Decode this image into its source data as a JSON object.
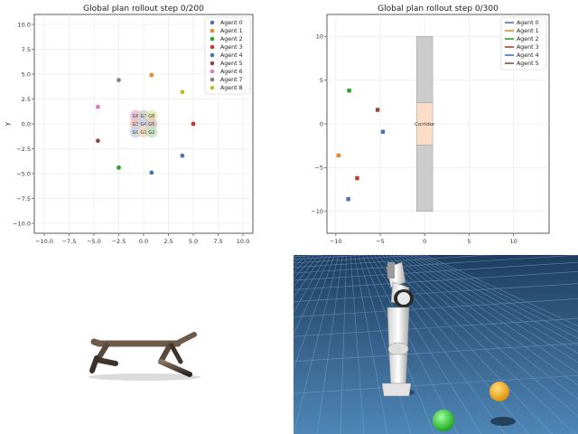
{
  "chart_data": [
    {
      "type": "scatter",
      "title": "Global plan rollout step 0/200",
      "xlabel": "",
      "ylabel": "y",
      "xlim": [
        -11,
        11
      ],
      "ylim": [
        -11,
        11
      ],
      "xticks": [
        -10,
        -7.5,
        -5,
        -2.5,
        0,
        2.5,
        5,
        7.5,
        10
      ],
      "xtick_labels": [
        "−10.0",
        "−7.5",
        "−5.0",
        "−2.5",
        "0.0",
        "2.5",
        "5.0",
        "7.5",
        "10.0"
      ],
      "yticks": [
        -10,
        -7.5,
        -5,
        -2.5,
        0,
        2.5,
        5,
        7.5,
        10
      ],
      "ytick_labels": [
        "−10.0",
        "−7.5",
        "−5.0",
        "−2.5",
        "0.0",
        "2.5",
        "5.0",
        "7.5",
        "10.0"
      ],
      "grid": true,
      "legend_position": "top-right",
      "series": [
        {
          "name": "Agent 0",
          "color": "#4c72b0",
          "x": [
            0.8
          ],
          "y": [
            -4.9
          ]
        },
        {
          "name": "Agent 1",
          "color": "#dd8e2b",
          "x": [
            0.8
          ],
          "y": [
            4.9
          ]
        },
        {
          "name": "Agent 2",
          "color": "#2ca02c",
          "x": [
            -2.5
          ],
          "y": [
            -4.4
          ]
        },
        {
          "name": "Agent 3",
          "color": "#c0392b",
          "x": [
            5.0
          ],
          "y": [
            0.0
          ]
        },
        {
          "name": "Agent 4",
          "color": "#4c72b0",
          "x": [
            3.9
          ],
          "y": [
            -3.2
          ]
        },
        {
          "name": "Agent 5",
          "color": "#8c4a3c",
          "x": [
            -4.6
          ],
          "y": [
            -1.7
          ]
        },
        {
          "name": "Agent 6",
          "color": "#e377c2",
          "x": [
            -4.6
          ],
          "y": [
            1.7
          ]
        },
        {
          "name": "Agent 7",
          "color": "#7f7f7f",
          "x": [
            -2.5
          ],
          "y": [
            4.4
          ]
        },
        {
          "name": "Agent 8",
          "color": "#bcbd22",
          "x": [
            3.9
          ],
          "y": [
            3.2
          ]
        }
      ],
      "goals": [
        {
          "label": "G6",
          "x": -0.8,
          "y": 0.8,
          "color": "#e6c0de"
        },
        {
          "label": "G7",
          "x": 0,
          "y": 0.8,
          "color": "#d0d0d0"
        },
        {
          "label": "G8",
          "x": 0.8,
          "y": 0.8,
          "color": "#e8e8b4"
        },
        {
          "label": "G3",
          "x": -0.8,
          "y": 0,
          "color": "#f0c4bc"
        },
        {
          "label": "G4",
          "x": 0,
          "y": 0,
          "color": "#c8d2e4"
        },
        {
          "label": "G5",
          "x": 0.8,
          "y": 0,
          "color": "#ddc9c4"
        },
        {
          "label": "G0",
          "x": -0.8,
          "y": -0.8,
          "color": "#c8d2e4"
        },
        {
          "label": "G1",
          "x": 0,
          "y": -0.8,
          "color": "#f4d8bc"
        },
        {
          "label": "G2",
          "x": 0.8,
          "y": -0.8,
          "color": "#c4e0c4"
        }
      ]
    },
    {
      "type": "scatter",
      "title": "Global plan rollout step 0/300",
      "xlabel": "",
      "ylabel": "",
      "xlim": [
        -11,
        14
      ],
      "ylim": [
        -12.5,
        12.5
      ],
      "xticks": [
        -10,
        -5,
        0,
        5,
        10
      ],
      "xtick_labels": [
        "−10",
        "−5",
        "0",
        "5",
        "10"
      ],
      "yticks": [
        -10,
        -5,
        0,
        5,
        10
      ],
      "ytick_labels": [
        "−10",
        "−5",
        "0",
        "5",
        "10"
      ],
      "grid": true,
      "legend_position": "top-right",
      "series": [
        {
          "name": "Agent 0",
          "color": "#4c72b0",
          "x": [
            -8.6
          ],
          "y": [
            -8.6
          ]
        },
        {
          "name": "Agent 1",
          "color": "#dd8e2b",
          "x": [
            -9.7
          ],
          "y": [
            -3.6
          ]
        },
        {
          "name": "Agent 2",
          "color": "#2ca02c",
          "x": [
            -8.5
          ],
          "y": [
            3.8
          ]
        },
        {
          "name": "Agent 3",
          "color": "#c0392b",
          "x": [
            -7.6
          ],
          "y": [
            -6.2
          ]
        },
        {
          "name": "Agent 4",
          "color": "#4c72b0",
          "x": [
            -4.7
          ],
          "y": [
            -0.9
          ]
        },
        {
          "name": "Agent 5",
          "color": "#8c4a3c",
          "x": [
            -5.3
          ],
          "y": [
            1.6
          ]
        }
      ],
      "regions": [
        {
          "x0": -0.9,
          "x1": 0.9,
          "y0": 2.4,
          "y1": 10,
          "color": "#cccccc"
        },
        {
          "x0": -0.9,
          "x1": 0.9,
          "y0": -10,
          "y1": -2.4,
          "color": "#cccccc"
        },
        {
          "x0": -0.9,
          "x1": 0.9,
          "y0": -2.4,
          "y1": 2.4,
          "color": "#fbdcc7",
          "label": "Corridor"
        }
      ]
    }
  ],
  "scene_robot": {
    "floor_color": "#2f5d8a",
    "ball_colors": [
      "#f0a81c",
      "#2bd22b"
    ]
  }
}
